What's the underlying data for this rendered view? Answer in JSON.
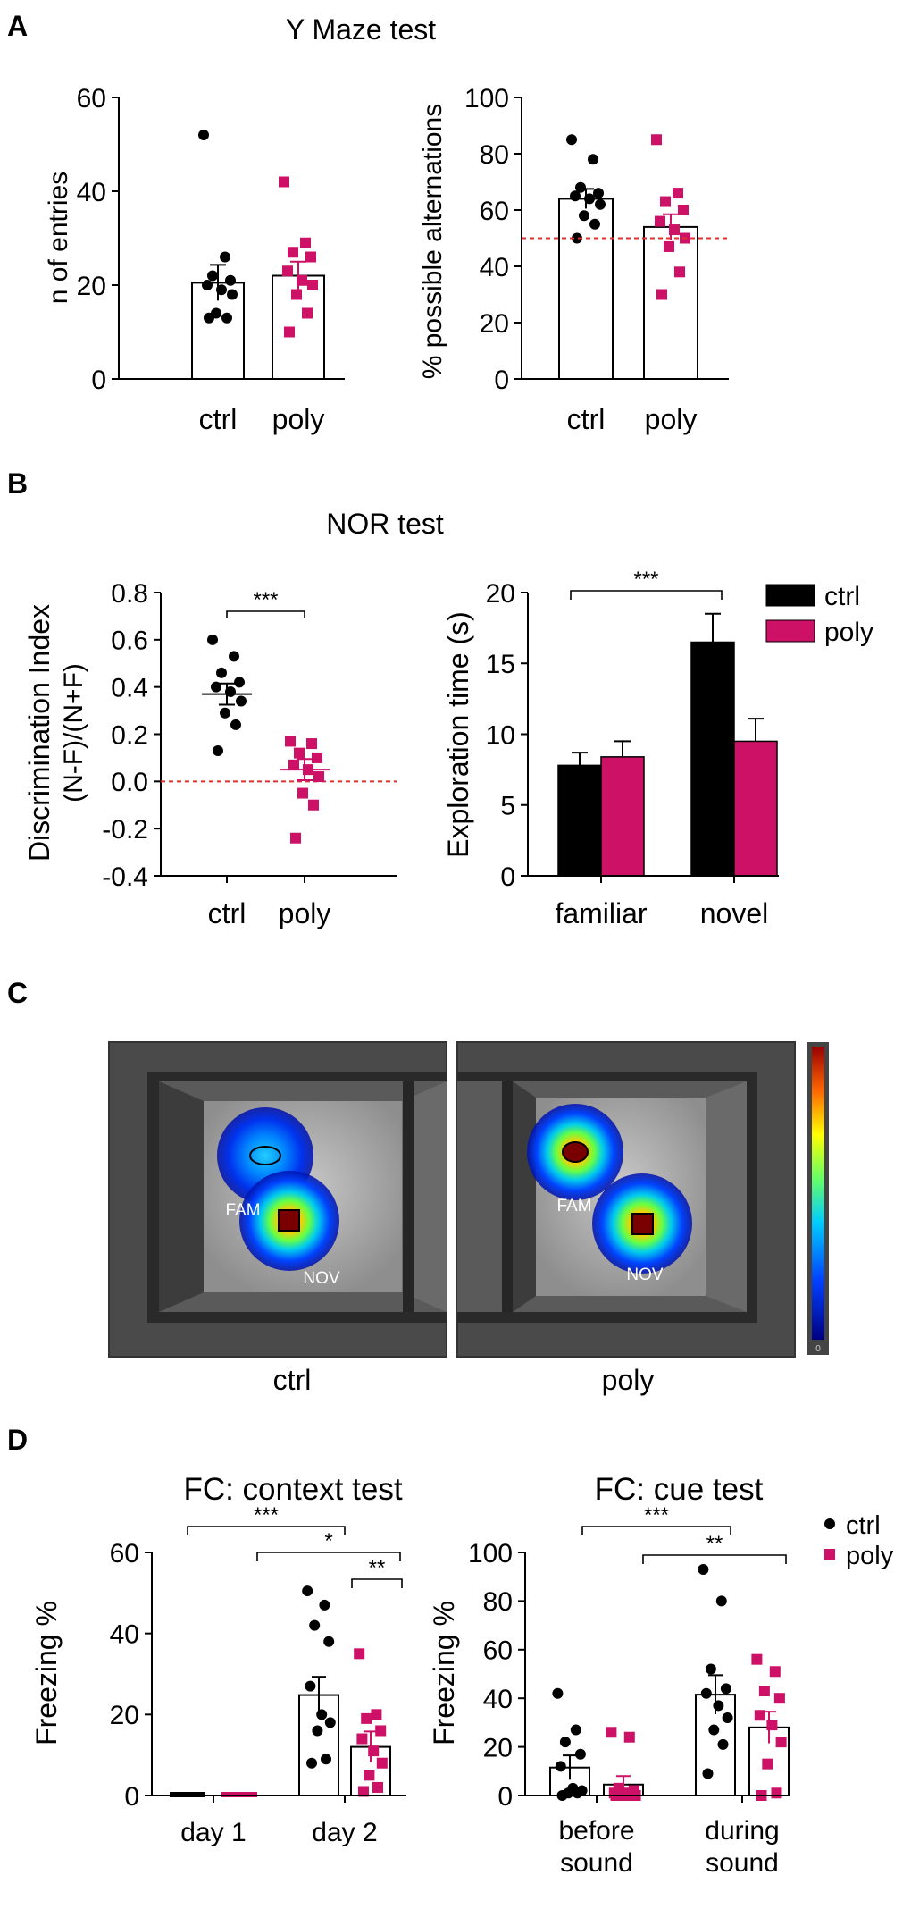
{
  "colors": {
    "ctrl": "#000000",
    "poly": "#cc1166",
    "reference": "#e03030"
  },
  "panels": {
    "a": "A",
    "b": "B",
    "c": "C",
    "d": "D"
  },
  "titles": {
    "ymaze": "Y Maze test",
    "nor": "NOR test",
    "fc_context": "FC: context test",
    "fc_cue": "FC: cue test"
  },
  "chart_data": [
    {
      "id": "entries",
      "type": "bar",
      "ylabel": "n of entries",
      "ylim": [
        0,
        60
      ],
      "yticks": [
        0,
        20,
        40,
        60
      ],
      "categories": [
        "ctrl",
        "poly"
      ],
      "groups": [
        {
          "label": "ctrl",
          "mean": 20.5,
          "sem": 3.8,
          "points": [
            52,
            26,
            22,
            21,
            20,
            19,
            18,
            14,
            13,
            13
          ]
        },
        {
          "label": "poly",
          "mean": 22,
          "sem": 3,
          "points": [
            42,
            29,
            27,
            26,
            23,
            21,
            20,
            18,
            14,
            10
          ]
        }
      ]
    },
    {
      "id": "alternations",
      "type": "bar",
      "ylabel": "% possible alternations",
      "ylim": [
        0,
        100
      ],
      "yticks": [
        0,
        20,
        40,
        60,
        80,
        100
      ],
      "reference_line": 50,
      "categories": [
        "ctrl",
        "poly"
      ],
      "groups": [
        {
          "label": "ctrl",
          "mean": 64,
          "sem": 3.5,
          "points": [
            85,
            78,
            68,
            66,
            65,
            64,
            62,
            58,
            55,
            50
          ]
        },
        {
          "label": "poly",
          "mean": 54,
          "sem": 4.5,
          "points": [
            85,
            66,
            63,
            60,
            56,
            53,
            50,
            47,
            38,
            30
          ]
        }
      ]
    },
    {
      "id": "discrimination",
      "type": "scatter",
      "ylabel_line1": "Discrimination Index",
      "ylabel_line2": "(N-F)/(N+F)",
      "ylim": [
        -0.4,
        0.8
      ],
      "yticks": [
        "0.8",
        "0.6",
        "0.4",
        "0.2",
        "0.0",
        "-0.2",
        "-0.4"
      ],
      "reference_line": 0,
      "categories": [
        "ctrl",
        "poly"
      ],
      "significance": "***",
      "groups": [
        {
          "label": "ctrl",
          "mean": 0.37,
          "sem": 0.045,
          "points": [
            0.6,
            0.53,
            0.46,
            0.42,
            0.4,
            0.38,
            0.34,
            0.29,
            0.24,
            0.13
          ]
        },
        {
          "label": "poly",
          "mean": 0.05,
          "sem": 0.045,
          "points": [
            0.17,
            0.16,
            0.12,
            0.1,
            0.07,
            0.05,
            0.02,
            -0.05,
            -0.1,
            -0.24
          ]
        }
      ]
    },
    {
      "id": "exploration",
      "type": "bar",
      "ylabel": "Exploration time (s)",
      "ylim": [
        0,
        20
      ],
      "yticks": [
        0,
        5,
        10,
        15,
        20
      ],
      "categories": [
        "familiar",
        "novel"
      ],
      "series": [
        {
          "name": "ctrl",
          "values": [
            7.8,
            16.5
          ],
          "sem": [
            0.9,
            2
          ]
        },
        {
          "name": "poly",
          "values": [
            8.4,
            9.5
          ],
          "sem": [
            1.1,
            1.6
          ]
        }
      ],
      "significance": "***",
      "legend": [
        "ctrl",
        "poly"
      ]
    },
    {
      "id": "context",
      "type": "bar",
      "ylabel": "Freezing %",
      "ylim": [
        0,
        60
      ],
      "yticks": [
        0,
        20,
        40,
        60
      ],
      "categories": [
        "day 1",
        "day 2"
      ],
      "series": [
        {
          "name": "ctrl",
          "means": [
            0,
            24.8
          ],
          "sem": [
            0,
            4.5
          ],
          "points": [
            [
              0,
              0,
              0,
              0,
              0,
              0,
              0,
              0,
              0,
              0
            ],
            [
              50.5,
              47,
              42,
              38,
              27,
              20,
              18,
              16,
              9,
              8
            ]
          ]
        },
        {
          "name": "poly",
          "means": [
            0,
            12
          ],
          "sem": [
            0,
            3.8
          ],
          "points": [
            [
              0,
              0,
              0,
              0,
              0,
              0,
              0,
              0,
              0,
              0
            ],
            [
              35,
              20,
              19,
              16,
              14,
              11,
              8,
              5,
              2,
              1
            ]
          ]
        }
      ],
      "significance": [
        "***",
        "*",
        "**"
      ]
    },
    {
      "id": "cue",
      "type": "bar",
      "ylabel": "Freezing %",
      "ylim": [
        0,
        100
      ],
      "yticks": [
        0,
        20,
        40,
        60,
        80,
        100
      ],
      "categories_line1": [
        "before",
        "during"
      ],
      "categories_line2": [
        "sound",
        "sound"
      ],
      "series": [
        {
          "name": "ctrl",
          "means": [
            11.5,
            41.5
          ],
          "sem": [
            5,
            8
          ],
          "points": [
            [
              42,
              27,
              22,
              17,
              12,
              3,
              2,
              1,
              1,
              0
            ],
            [
              93,
              80,
              52,
              44,
              42,
              37,
              32,
              27,
              21,
              9
            ]
          ]
        },
        {
          "name": "poly",
          "means": [
            4.5,
            28
          ],
          "sem": [
            3.5,
            6.5
          ],
          "points": [
            [
              26,
              24,
              3,
              2,
              1,
              1,
              0,
              0,
              0,
              0
            ],
            [
              56,
              51,
              43,
              40,
              33,
              29,
              22,
              13,
              1,
              0
            ]
          ]
        }
      ],
      "significance": [
        "***",
        "**"
      ],
      "legend": [
        "ctrl",
        "poly"
      ]
    }
  ],
  "heatmap": {
    "ctrl_label": "ctrl",
    "poly_label": "poly",
    "fam_label": "FAM",
    "nov_label": "NOV",
    "scale_min": "0"
  }
}
